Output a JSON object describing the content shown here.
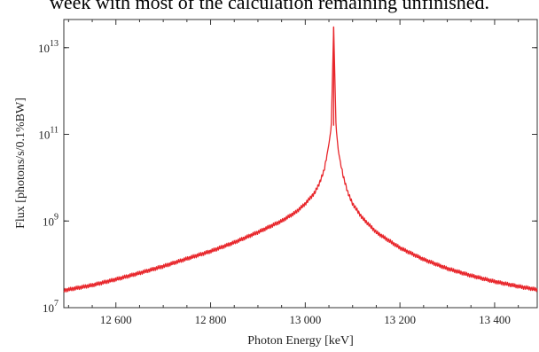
{
  "caption": "week with most of the calculation remaining unfinished.",
  "chart_data": {
    "type": "line",
    "title": "",
    "xlabel": "Photon Energy [keV]",
    "ylabel": "Flux [photons/s/0.1%BW]",
    "xlim": [
      12490,
      13490
    ],
    "ylim_log10": [
      7,
      13.65
    ],
    "yscale": "log",
    "grid": false,
    "x_ticks": [
      {
        "value": 12600,
        "label": "12 600"
      },
      {
        "value": 12800,
        "label": "12 800"
      },
      {
        "value": 13000,
        "label": "13 000"
      },
      {
        "value": 13200,
        "label": "13 200"
      },
      {
        "value": 13400,
        "label": "13 400"
      }
    ],
    "y_ticks": [
      {
        "exp": 7,
        "label": "10",
        "sup": "7"
      },
      {
        "exp": 9,
        "label": "10",
        "sup": "9"
      },
      {
        "exp": 11,
        "label": "10",
        "sup": "11"
      },
      {
        "exp": 13,
        "label": "10",
        "sup": "13"
      }
    ],
    "series": [
      {
        "color": "#e8262b",
        "x": [
          12490,
          12550,
          12600,
          12650,
          12700,
          12750,
          12800,
          12850,
          12900,
          12950,
          12980,
          13000,
          13020,
          13030,
          13040,
          13050,
          13055,
          13060,
          13065,
          13070,
          13080,
          13090,
          13100,
          13120,
          13150,
          13200,
          13250,
          13300,
          13350,
          13400,
          13450,
          13490
        ],
        "y": [
          25000000.0,
          33000000.0,
          45000000.0,
          63000000.0,
          90000000.0,
          135000000.0,
          200000000.0,
          320000000.0,
          550000000.0,
          1000000000.0,
          1600000000.0,
          2500000000.0,
          4500000000.0,
          7500000000.0,
          15000000000.0,
          60000000000.0,
          150000000000.0,
          30000000000000.0,
          150000000000.0,
          40000000000.0,
          11000000000.0,
          4500000000.0,
          2500000000.0,
          1200000000.0,
          550000000.0,
          240000000.0,
          130000000.0,
          80000000.0,
          55000000.0,
          40000000.0,
          31000000.0,
          26000000.0
        ]
      }
    ]
  }
}
